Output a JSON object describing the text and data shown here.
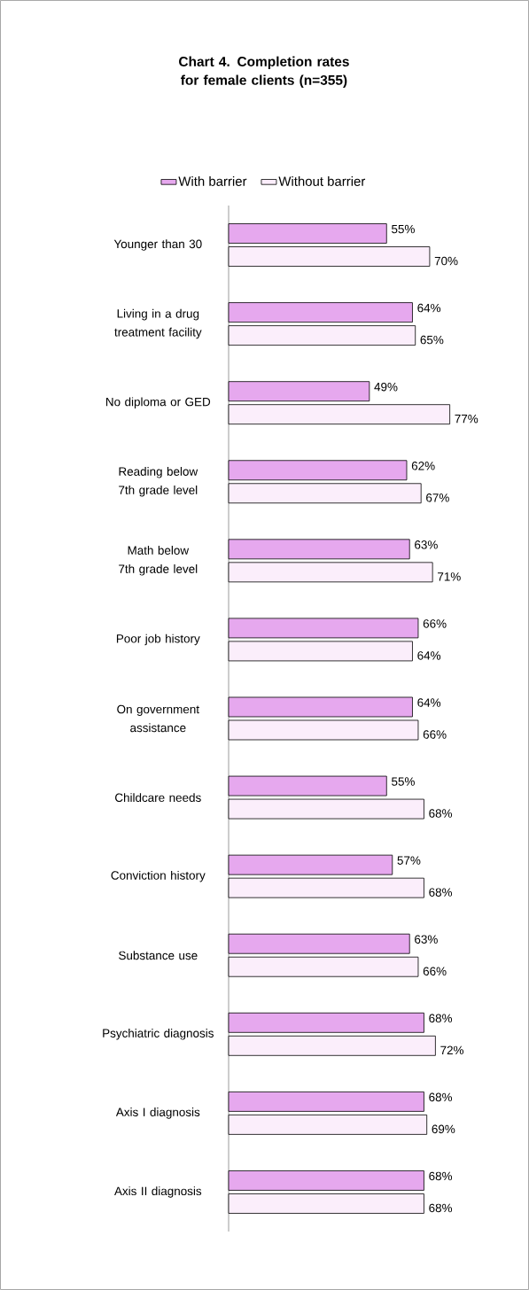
{
  "chart_data": {
    "type": "bar",
    "orientation": "horizontal",
    "title": "**Chart 4.** **Completion rates for female clients (n=355)**",
    "legend": "top",
    "categories": [
      "Younger than 30",
      "Living in a drug treatment facility",
      "No diploma or GED",
      "Reading below 7th grade level",
      "Math below 7th grade level",
      "Poor job history",
      "On government assistance",
      "Childcare needs",
      "Conviction history",
      "Substance use",
      "Psychiatric diagnosis",
      "Axis I diagnosis",
      "Axis II diagnosis"
    ],
    "series": [
      {
        "name": "With barrier",
        "color": "#e6a8ee",
        "values": [
          55,
          64,
          49,
          62,
          63,
          66,
          64,
          55,
          57,
          63,
          68,
          68,
          68
        ],
        "value_labels": [
          "55%",
          "64%",
          "49%",
          "62%",
          "63%",
          "66%",
          "64%",
          "55%",
          "57%",
          "63%",
          "68%",
          "68%",
          "68%"
        ]
      },
      {
        "name": "Without barrier",
        "color": "#fbeefb",
        "values": [
          70,
          65,
          77,
          67,
          71,
          64,
          66,
          68,
          68,
          66,
          72,
          69,
          68
        ],
        "value_labels": [
          "70%",
          "65%",
          "77%",
          "67%",
          "71%",
          "64%",
          "66%",
          "68%",
          "68%",
          "66%",
          "72%",
          "69%",
          "68%"
        ]
      }
    ]
  }
}
